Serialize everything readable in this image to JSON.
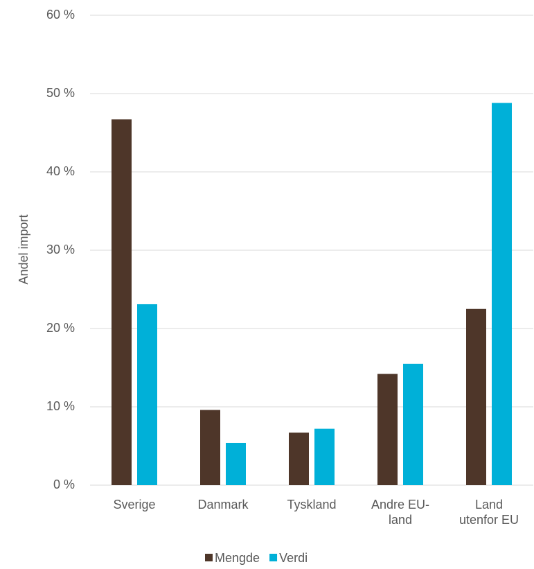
{
  "chart_data": {
    "type": "bar",
    "y_label": "Andel import",
    "categories": [
      "Sverige",
      "Danmark",
      "Tyskland",
      "Andre EU-land",
      "Land utenfor EU"
    ],
    "series": [
      {
        "name": "Mengde",
        "color": "#4e3629",
        "values": [
          46.7,
          9.6,
          6.7,
          14.2,
          22.5
        ]
      },
      {
        "name": "Verdi",
        "color": "#00b0d8",
        "values": [
          23.1,
          5.4,
          7.2,
          15.5,
          48.8
        ]
      }
    ],
    "ylim": [
      0,
      60
    ],
    "yticks": [
      {
        "value": 0,
        "label": "0 %"
      },
      {
        "value": 10,
        "label": "10 %"
      },
      {
        "value": 20,
        "label": "20 %"
      },
      {
        "value": 30,
        "label": "30 %"
      },
      {
        "value": 40,
        "label": "40 %"
      },
      {
        "value": 50,
        "label": "50 %"
      },
      {
        "value": 60,
        "label": "60 %"
      }
    ],
    "grid": true,
    "legend": "bottom"
  }
}
